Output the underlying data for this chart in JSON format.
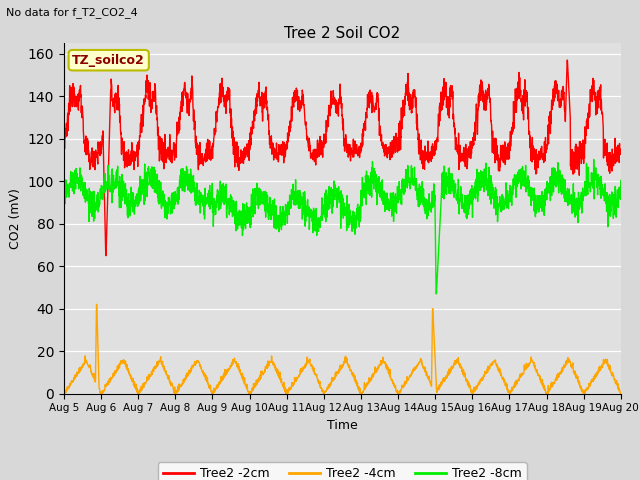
{
  "title": "Tree 2 Soil CO2",
  "no_data_text": "No data for f_T2_CO2_4",
  "xlabel": "Time",
  "ylabel": "CO2 (mV)",
  "legend_label": "TZ_soilco2",
  "ylim": [
    0,
    165
  ],
  "yticks": [
    0,
    20,
    40,
    60,
    80,
    100,
    120,
    140,
    160
  ],
  "x_tick_labels": [
    "Aug 5",
    "Aug 6",
    "Aug 7",
    "Aug 8",
    "Aug 9",
    "Aug 10",
    "Aug 11",
    "Aug 12",
    "Aug 13",
    "Aug 14",
    "Aug 15",
    "Aug 16",
    "Aug 17",
    "Aug 18",
    "Aug 19",
    "Aug 20"
  ],
  "colors": {
    "red": "#ff0000",
    "orange": "#ffa500",
    "green": "#00ee00",
    "bg": "#e0e0e0",
    "box_bg": "#ffffcc",
    "box_edge": "#bbbb00"
  },
  "line_width": 1.0
}
